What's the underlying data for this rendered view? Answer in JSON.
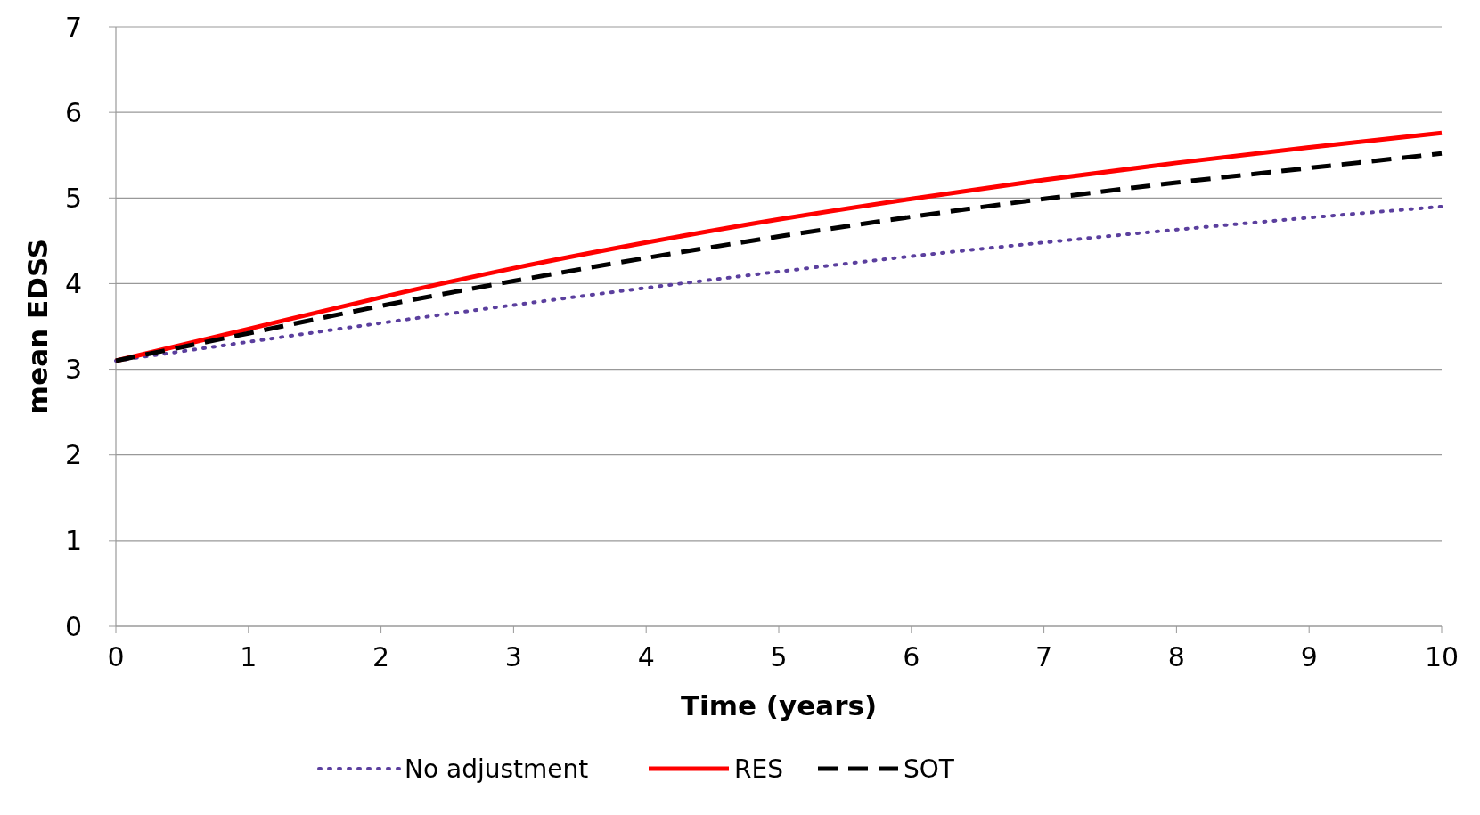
{
  "chart_data": {
    "type": "line",
    "xlabel": "Time (years)",
    "ylabel": "mean EDSS",
    "x": [
      0,
      1,
      2,
      3,
      4,
      5,
      6,
      7,
      8,
      9,
      10
    ],
    "series": [
      {
        "name": "No adjustment",
        "color": "#5b3f9e",
        "line_style": "dotted",
        "values": [
          3.1,
          3.32,
          3.54,
          3.75,
          3.95,
          4.14,
          4.32,
          4.48,
          4.63,
          4.77,
          4.9
        ]
      },
      {
        "name": "RES",
        "color": "#ff0000",
        "line_style": "solid",
        "values": [
          3.1,
          3.47,
          3.84,
          4.18,
          4.48,
          4.75,
          4.99,
          5.21,
          5.41,
          5.59,
          5.76
        ]
      },
      {
        "name": "SOT",
        "color": "#000000",
        "line_style": "dashed",
        "values": [
          3.1,
          3.42,
          3.74,
          4.03,
          4.3,
          4.55,
          4.78,
          4.99,
          5.18,
          5.35,
          5.52
        ]
      }
    ],
    "xlim": [
      0,
      10
    ],
    "xticks": [
      0,
      1,
      2,
      3,
      4,
      5,
      6,
      7,
      8,
      9,
      10
    ],
    "ylim": [
      0,
      7
    ],
    "yticks": [
      0,
      1,
      2,
      3,
      4,
      5,
      6,
      7
    ],
    "grid": "y",
    "legend": "bottom"
  }
}
